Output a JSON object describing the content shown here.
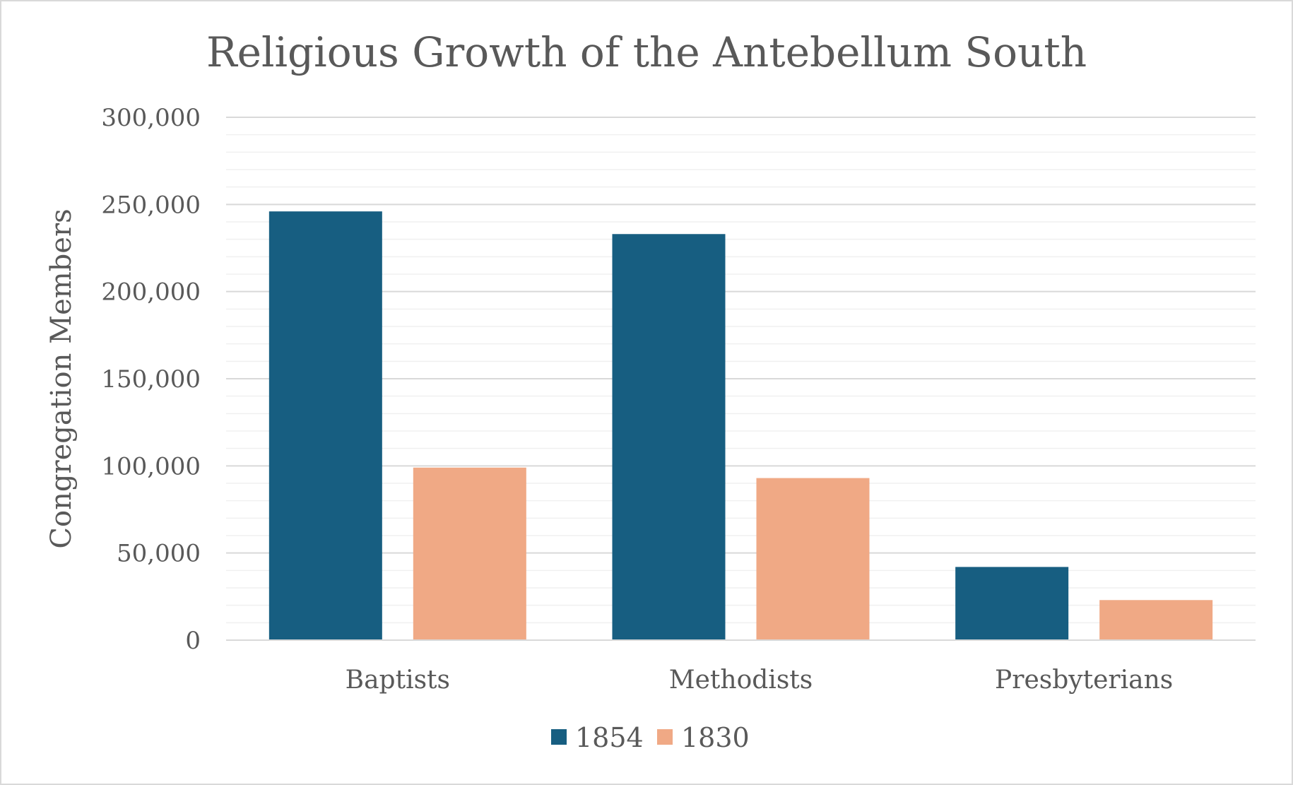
{
  "chart_data": {
    "type": "bar",
    "title": "Religious Growth of the Antebellum South",
    "xlabel": "",
    "ylabel": "Congregation Members",
    "categories": [
      "Baptists",
      "Methodists",
      "Presbyterians"
    ],
    "series": [
      {
        "name": "1854",
        "values": [
          246000,
          233000,
          42000
        ],
        "color": "#175e81"
      },
      {
        "name": "1830",
        "values": [
          99000,
          93000,
          23000
        ],
        "color": "#f0a985"
      }
    ],
    "ylim": [
      0,
      300000
    ],
    "yticks": [
      0,
      50000,
      100000,
      150000,
      200000,
      250000,
      300000
    ],
    "ytick_labels": [
      "0",
      "50,000",
      "100,000",
      "150,000",
      "200,000",
      "250,000",
      "300,000"
    ],
    "grid": true,
    "minor_grid": true,
    "legend": "bottom-center"
  }
}
